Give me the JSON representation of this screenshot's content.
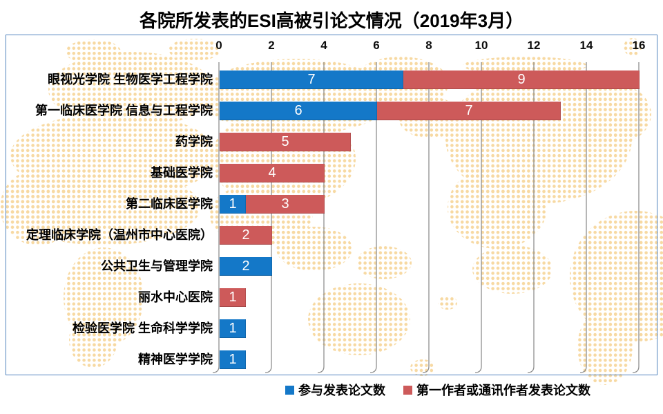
{
  "title": "各院所发表的ESI高被引论文情况（2019年3月）",
  "colors": {
    "participated_blue": "#1478C8",
    "first_author_red": "#CD5A5A",
    "map_dots": "#F7D9A2",
    "frame_border": "#4F81BD",
    "gridline": "#8E8E8E",
    "title_text": "#000000",
    "bar_value_text": "#FFFFFF"
  },
  "chart_data": {
    "type": "bar",
    "orientation": "horizontal",
    "stacked": true,
    "title": "各院所发表的ESI高被引论文情况（2019年3月）",
    "categories": [
      "眼视光学院 生物医学工程学院",
      "第一临床医学院 信息与工程学院",
      "药学院",
      "基础医学院",
      "第二临床医学院",
      "定理临床学院（温州市中心医院）",
      "公共卫生与管理学院",
      "丽水中心医院",
      "检验医学院 生命科学学院",
      "精神医学学院"
    ],
    "series": [
      {
        "name": "参与发表论文数",
        "color": "#1478C8",
        "values": [
          7,
          6,
          0,
          0,
          1,
          0,
          2,
          0,
          1,
          1
        ]
      },
      {
        "name": "第一作者或通讯作者发表论文数",
        "color": "#CD5A5A",
        "values": [
          9,
          7,
          5,
          4,
          3,
          2,
          0,
          1,
          0,
          0
        ]
      }
    ],
    "totals": [
      16,
      13,
      5,
      4,
      4,
      2,
      2,
      1,
      1,
      1
    ],
    "xlim": [
      0,
      16
    ],
    "x_ticks": [
      0,
      2,
      4,
      6,
      8,
      10,
      12,
      14,
      16
    ],
    "xlabel": "",
    "ylabel": "",
    "grid": "vertical",
    "value_labels": "inside-white",
    "legend_position": "bottom"
  }
}
